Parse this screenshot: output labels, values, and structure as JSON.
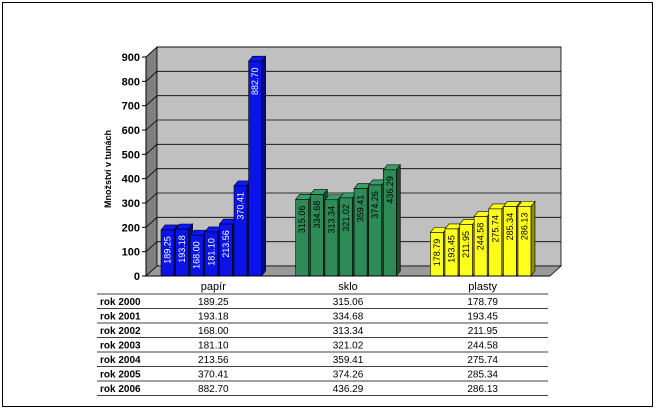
{
  "chart_data": {
    "type": "bar",
    "three_d": true,
    "categories": [
      "papír",
      "sklo",
      "plasty"
    ],
    "series": [
      {
        "name": "rok 2000",
        "values": [
          189.25,
          315.06,
          178.79
        ]
      },
      {
        "name": "rok 2001",
        "values": [
          193.18,
          334.68,
          193.45
        ]
      },
      {
        "name": "rok 2002",
        "values": [
          168.0,
          313.34,
          211.95
        ]
      },
      {
        "name": "rok 2003",
        "values": [
          181.1,
          321.02,
          244.58
        ]
      },
      {
        "name": "rok 2004",
        "values": [
          213.56,
          359.41,
          275.74
        ]
      },
      {
        "name": "rok 2005",
        "values": [
          370.41,
          374.26,
          285.34
        ]
      },
      {
        "name": "rok 2006",
        "values": [
          882.7,
          436.29,
          286.13
        ]
      }
    ],
    "bar_label_text": {
      "papír": [
        "189.25",
        "193.18",
        "168.00",
        "181.10",
        "213.56",
        "370.41",
        "882.70"
      ],
      "sklo": [
        "315.06",
        "334.68",
        "313.34",
        "321.02",
        "359.41",
        "374.26",
        "436.29"
      ],
      "plasty": [
        "178.79",
        "193.45",
        "211.95",
        "244.58",
        "275.74",
        "285.34",
        "286.13"
      ]
    },
    "table_text": {
      "papír": [
        "189.25",
        "193.18",
        "168.00",
        "181.10",
        "213.56",
        "370.41",
        "882.70"
      ],
      "sklo": [
        "315.06",
        "334.68",
        "313.34",
        "321.02",
        "359.41",
        "374.26",
        "436.29"
      ],
      "plasty": [
        "178.79",
        "193.45",
        "211.95",
        "244.58",
        "275.74",
        "285.34",
        "286.13"
      ]
    },
    "category_colors": [
      "#0a14e8",
      "#2e8b57",
      "#ffff1a"
    ],
    "ylabel": "Množství v tunách",
    "xlabel": "",
    "ylim": [
      0,
      900
    ],
    "yticks": [
      0,
      100,
      200,
      300,
      400,
      500,
      600,
      700,
      800,
      900
    ],
    "grid": true,
    "data_table": true,
    "legend": "none"
  }
}
